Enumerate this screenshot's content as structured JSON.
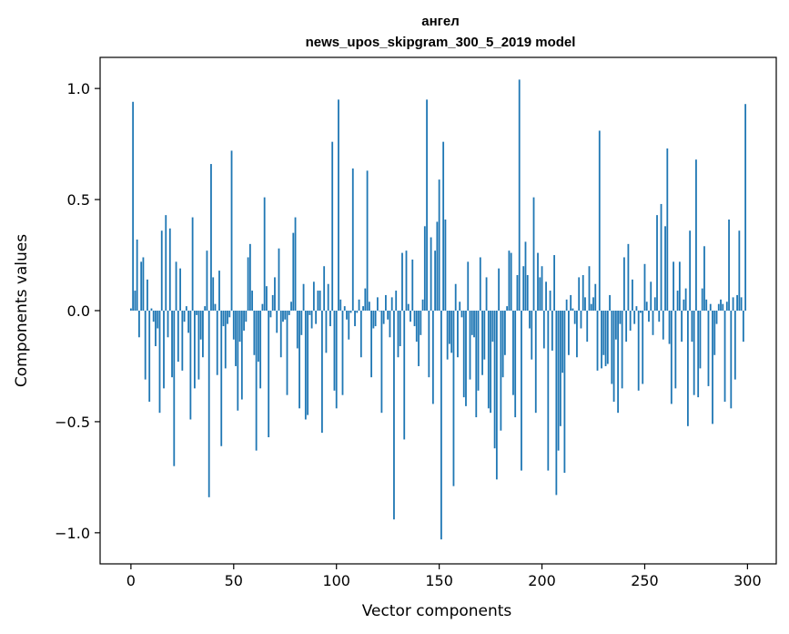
{
  "chart_data": {
    "type": "bar",
    "title": "ангел",
    "subtitle": "news_upos_skipgram_300_5_2019 model",
    "xlabel": "Vector components",
    "ylabel": "Components values",
    "xlim": [
      -15,
      314
    ],
    "ylim": [
      -1.14,
      1.14
    ],
    "xticks": [
      0,
      50,
      100,
      150,
      200,
      250,
      300
    ],
    "xtick_labels": [
      "0",
      "50",
      "100",
      "150",
      "200",
      "250",
      "300"
    ],
    "yticks": [
      -1.0,
      -0.5,
      0.0,
      0.5,
      1.0
    ],
    "ytick_labels": [
      "−1.0",
      "−0.5",
      "0.0",
      "0.5",
      "1.0"
    ],
    "grid": false,
    "bar_color": "#1f77b4",
    "values": [
      0.01,
      0.94,
      0.09,
      0.32,
      -0.12,
      0.22,
      0.24,
      -0.31,
      0.14,
      -0.41,
      0.01,
      -0.05,
      -0.16,
      -0.08,
      -0.46,
      0.36,
      -0.35,
      0.43,
      -0.12,
      0.37,
      -0.3,
      -0.7,
      0.22,
      -0.23,
      0.19,
      -0.27,
      -0.05,
      0.02,
      -0.1,
      -0.49,
      0.42,
      -0.35,
      -0.02,
      -0.31,
      -0.13,
      -0.21,
      0.02,
      0.27,
      -0.84,
      0.66,
      0.15,
      0.03,
      -0.29,
      0.18,
      -0.61,
      -0.07,
      -0.26,
      -0.06,
      -0.03,
      0.72,
      -0.13,
      -0.25,
      -0.45,
      -0.14,
      -0.4,
      -0.09,
      -0.05,
      0.24,
      0.3,
      0.09,
      -0.2,
      -0.63,
      -0.23,
      -0.35,
      0.03,
      0.51,
      0.11,
      -0.57,
      -0.03,
      0.07,
      0.15,
      -0.1,
      0.28,
      -0.21,
      -0.05,
      -0.04,
      -0.38,
      -0.02,
      0.04,
      0.35,
      0.42,
      -0.17,
      -0.44,
      -0.11,
      0.12,
      -0.49,
      -0.47,
      -0.02,
      -0.08,
      0.13,
      -0.06,
      0.09,
      0.09,
      -0.55,
      0.2,
      -0.19,
      0.12,
      -0.07,
      0.76,
      -0.36,
      -0.44,
      0.95,
      0.05,
      -0.38,
      0.02,
      -0.04,
      -0.13,
      -0.01,
      0.64,
      -0.07,
      -0.01,
      0.05,
      -0.21,
      0.02,
      0.1,
      0.63,
      0.04,
      -0.3,
      -0.08,
      -0.07,
      0.06,
      0.0,
      -0.46,
      -0.06,
      0.07,
      -0.04,
      -0.12,
      0.06,
      -0.94,
      0.09,
      -0.21,
      -0.16,
      0.26,
      -0.58,
      0.27,
      0.03,
      -0.05,
      0.23,
      -0.07,
      -0.14,
      -0.25,
      -0.11,
      0.05,
      0.38,
      0.95,
      -0.3,
      0.33,
      -0.42,
      0.27,
      0.4,
      0.59,
      -1.03,
      0.76,
      0.41,
      -0.22,
      -0.15,
      -0.19,
      -0.79,
      0.12,
      -0.21,
      0.04,
      -0.03,
      -0.39,
      -0.43,
      0.22,
      -0.31,
      -0.11,
      -0.12,
      -0.48,
      -0.36,
      0.24,
      -0.29,
      -0.22,
      0.15,
      -0.44,
      -0.46,
      -0.14,
      -0.62,
      -0.76,
      0.19,
      -0.54,
      -0.3,
      -0.2,
      0.02,
      0.27,
      0.26,
      -0.38,
      -0.48,
      0.16,
      1.04,
      -0.72,
      0.2,
      0.31,
      0.16,
      -0.08,
      -0.22,
      0.51,
      -0.46,
      0.26,
      0.15,
      0.2,
      -0.17,
      0.13,
      -0.72,
      0.09,
      -0.18,
      0.25,
      -0.83,
      -0.63,
      -0.52,
      -0.28,
      -0.73,
      0.05,
      -0.2,
      0.07,
      0.01,
      -0.06,
      -0.21,
      0.15,
      -0.08,
      0.16,
      0.06,
      -0.14,
      0.2,
      0.03,
      0.06,
      0.12,
      -0.27,
      0.81,
      -0.26,
      -0.2,
      -0.25,
      -0.24,
      0.07,
      -0.33,
      -0.41,
      -0.13,
      -0.46,
      -0.06,
      -0.35,
      0.24,
      -0.14,
      0.3,
      -0.09,
      0.14,
      -0.06,
      0.02,
      -0.36,
      -0.01,
      -0.33,
      0.21,
      0.04,
      -0.05,
      0.13,
      -0.11,
      0.06,
      0.43,
      -0.05,
      0.48,
      -0.13,
      0.38,
      0.73,
      -0.15,
      -0.42,
      0.22,
      -0.35,
      0.09,
      0.22,
      -0.14,
      0.05,
      0.1,
      -0.52,
      0.36,
      -0.14,
      -0.38,
      0.68,
      -0.39,
      -0.26,
      0.1,
      0.29,
      0.05,
      -0.34,
      0.03,
      -0.51,
      -0.2,
      -0.06,
      0.03,
      0.05,
      0.03,
      -0.41,
      0.04,
      0.41,
      -0.44,
      0.06,
      -0.31,
      0.07,
      0.36,
      0.06,
      -0.14,
      0.93
    ]
  }
}
